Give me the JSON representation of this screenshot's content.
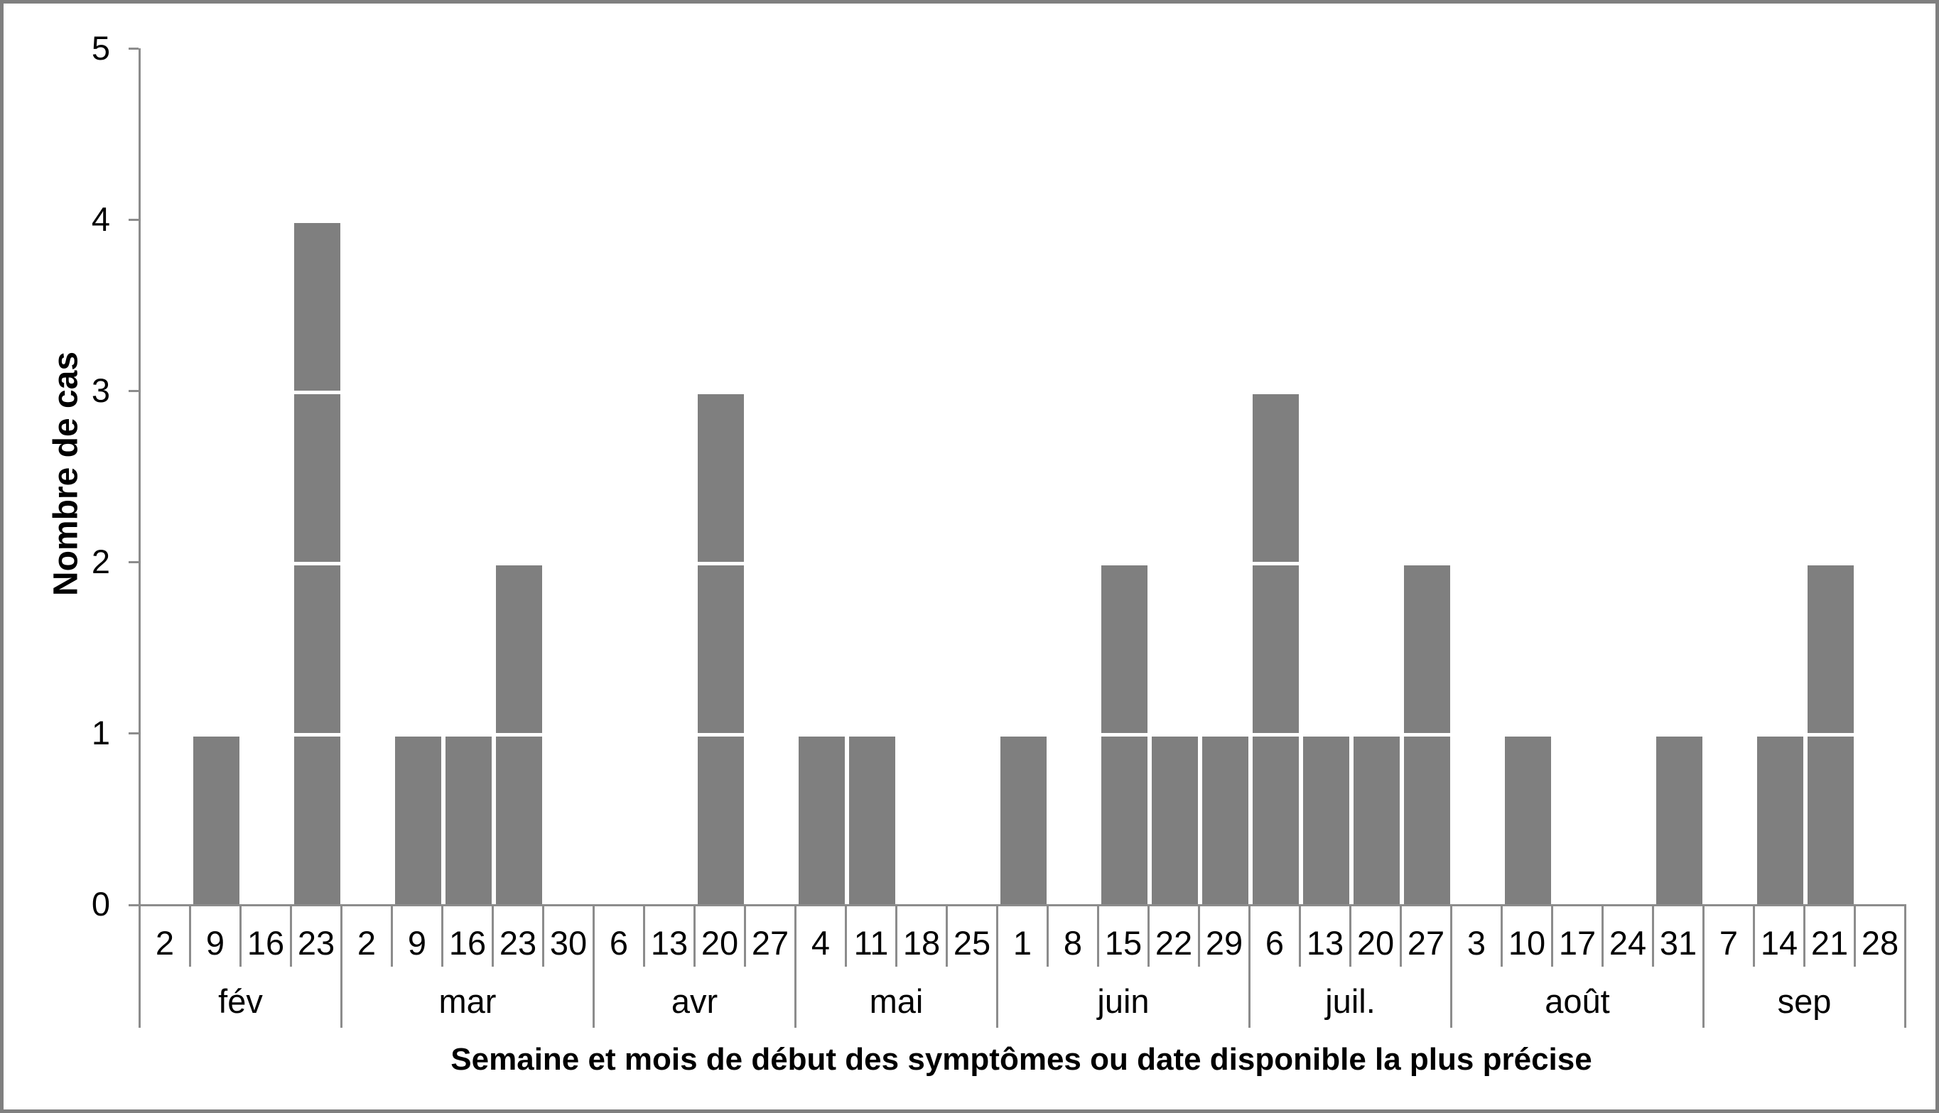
{
  "colors": {
    "bar": "#7f7f7f",
    "axis": "#8c8c8c",
    "figure_border": "#7f7f7f",
    "background": "#ffffff",
    "text": "#000000"
  },
  "chart_data": {
    "type": "bar",
    "title": "",
    "xlabel": "Semaine et mois de début des symptômes ou date disponible la plus précise",
    "ylabel": "Nombre de cas",
    "ylim": [
      0,
      5
    ],
    "yticks": [
      "0",
      "1",
      "2",
      "3",
      "4",
      "5"
    ],
    "grid": "off",
    "legend": "none",
    "bar_style": "epi-curve stacked unit squares separated by thin white lines",
    "categories_note": "x axis = week start day grouped by month",
    "months": [
      {
        "label": "fév",
        "weeks": [
          "2",
          "9",
          "16",
          "23"
        ],
        "values": [
          0,
          1,
          0,
          4
        ]
      },
      {
        "label": "mar",
        "weeks": [
          "2",
          "9",
          "16",
          "23",
          "30"
        ],
        "values": [
          0,
          1,
          1,
          2,
          0
        ]
      },
      {
        "label": "avr",
        "weeks": [
          "6",
          "13",
          "20",
          "27"
        ],
        "values": [
          0,
          0,
          3,
          0
        ]
      },
      {
        "label": "mai",
        "weeks": [
          "4",
          "11",
          "18",
          "25"
        ],
        "values": [
          1,
          1,
          0,
          0
        ]
      },
      {
        "label": "juin",
        "weeks": [
          "1",
          "8",
          "15",
          "22",
          "29"
        ],
        "values": [
          1,
          0,
          2,
          1,
          1
        ]
      },
      {
        "label": "juil.",
        "weeks": [
          "6",
          "13",
          "20",
          "27"
        ],
        "values": [
          3,
          1,
          1,
          2
        ]
      },
      {
        "label": "août",
        "weeks": [
          "3",
          "10",
          "17",
          "24",
          "31"
        ],
        "values": [
          0,
          1,
          0,
          0,
          1
        ]
      },
      {
        "label": "sep",
        "weeks": [
          "7",
          "14",
          "21",
          "28"
        ],
        "values": [
          0,
          1,
          2,
          0
        ]
      }
    ]
  }
}
